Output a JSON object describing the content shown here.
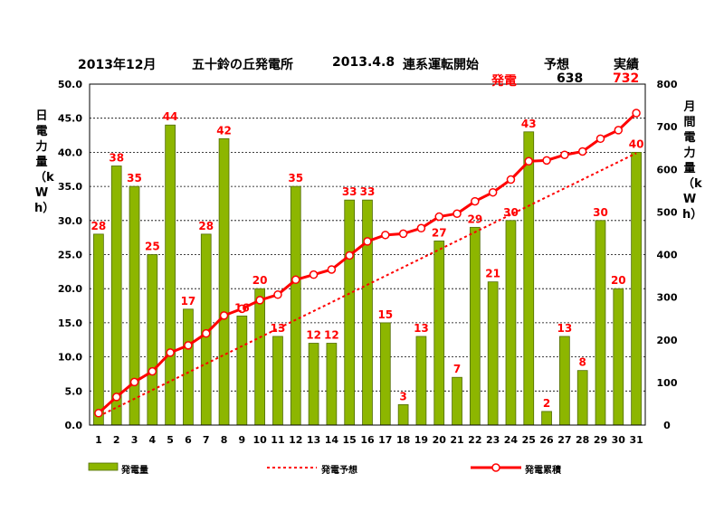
{
  "header": {
    "month": "2013年12月",
    "plant": "五十鈴の丘発電所",
    "date": "2013.4.8",
    "status": "連系運転開始",
    "forecast_label": "予想",
    "actual_label": "実績",
    "gen_label": "発電",
    "forecast_value": "638",
    "actual_value": "732"
  },
  "axes": {
    "left_label": "日電力量（kWh）",
    "right_label": "月間電力量（kWh）"
  },
  "legend": {
    "bar": "発電量",
    "forecast": "発電予想",
    "cumulative": "発電累積"
  },
  "colors": {
    "bar_fill": "#8DB600",
    "bar_edge": "#4F6B00",
    "line": "#FF0000",
    "label": "#FF0000"
  },
  "chart_data": {
    "type": "bar",
    "categories": [
      "1",
      "2",
      "3",
      "4",
      "5",
      "6",
      "7",
      "8",
      "9",
      "10",
      "11",
      "12",
      "13",
      "14",
      "15",
      "16",
      "17",
      "18",
      "19",
      "20",
      "21",
      "22",
      "23",
      "24",
      "25",
      "26",
      "27",
      "28",
      "29",
      "30",
      "31"
    ],
    "series": [
      {
        "name": "発電量",
        "type": "bar",
        "axis": "left",
        "values": [
          28,
          38,
          35,
          25,
          44,
          17,
          28,
          42,
          16,
          20,
          13,
          35,
          12,
          12,
          33,
          33,
          15,
          3,
          13,
          27,
          7,
          29,
          21,
          30,
          43,
          2,
          13,
          8,
          30,
          20,
          40
        ]
      },
      {
        "name": "発電予想",
        "type": "line",
        "style": "dotted",
        "axis": "right",
        "values": [
          20.6,
          41.2,
          61.7,
          82.3,
          102.9,
          123.5,
          144.1,
          164.6,
          185.2,
          205.8,
          226.4,
          247.0,
          267.5,
          288.1,
          308.7,
          329.3,
          349.8,
          370.4,
          391.0,
          411.6,
          432.2,
          452.7,
          473.3,
          493.9,
          514.5,
          535.1,
          555.6,
          576.2,
          596.8,
          617.4,
          638
        ]
      },
      {
        "name": "発電累積",
        "type": "line",
        "marker": "circle",
        "axis": "right",
        "values": [
          28,
          66,
          101,
          126,
          170,
          187,
          215,
          257,
          273,
          293,
          306,
          341,
          353,
          365,
          398,
          431,
          446,
          449,
          462,
          489,
          496,
          525,
          546,
          576,
          619,
          621,
          634,
          642,
          672,
          692,
          732
        ]
      }
    ],
    "ylim_left": [
      0,
      50
    ],
    "yticks_left": [
      "0.0",
      "5.0",
      "10.0",
      "15.0",
      "20.0",
      "25.0",
      "30.0",
      "35.0",
      "40.0",
      "45.0",
      "50.0"
    ],
    "ylim_right": [
      0,
      800
    ],
    "yticks_right": [
      "0",
      "100",
      "200",
      "300",
      "400",
      "500",
      "600",
      "700",
      "800"
    ],
    "grid": "horizontal dashed",
    "legend_position": "bottom"
  }
}
